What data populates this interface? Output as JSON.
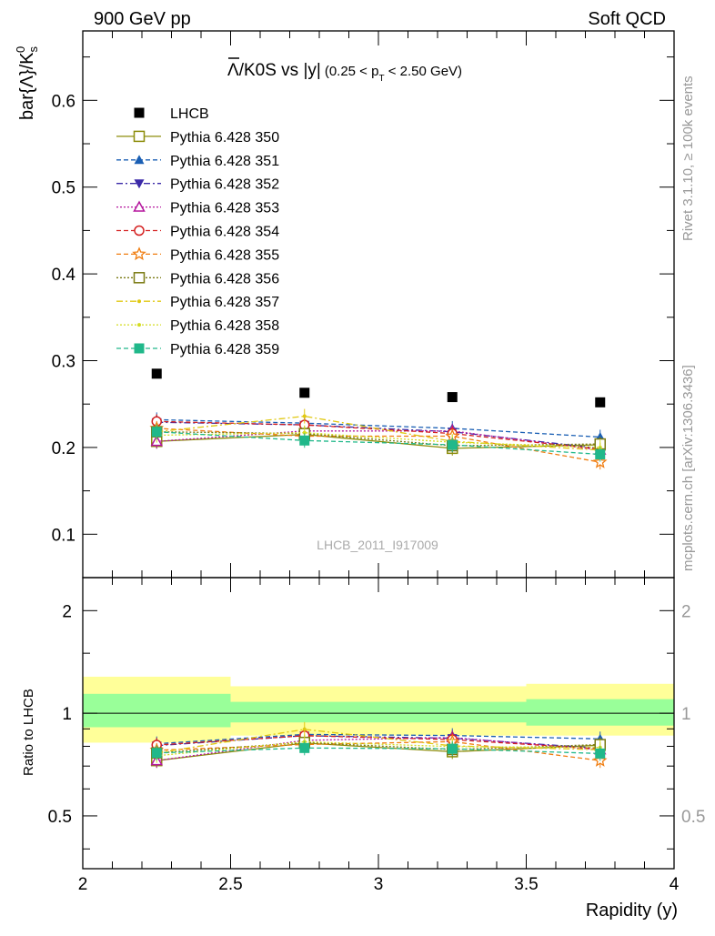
{
  "header": {
    "left": "900 GeV pp",
    "right": "Soft QCD"
  },
  "side": {
    "rivet": "Rivet 3.1.10, ≥ 100k events",
    "mcplots": "mcplots.cern.ch [arXiv:1306.3436]"
  },
  "chart_data": [
    {
      "type": "scatter",
      "title": "Λ̄/K0S vs |y|",
      "title_parts": {
        "lambda": "Λ",
        "main": "/K0S vs |y|",
        "cond_a": "(0.25 < p",
        "cond_sub": "T",
        "cond_b": " < 2.50 GeV)"
      },
      "ylabel": "bar{Λ}/K",
      "ylabel_sub": "s",
      "ylabel_sup": "0",
      "xlabel": "Rapidity (y)",
      "analysis_id": "LHCB_2011_I917009",
      "xlim": [
        2,
        4
      ],
      "ylim": [
        0.05,
        0.68
      ],
      "y_ticks": [
        "0.1",
        "0.2",
        "0.3",
        "0.4",
        "0.5",
        "0.6"
      ],
      "x": [
        2.25,
        2.75,
        3.25,
        3.75
      ],
      "data": {
        "name": "LHCB",
        "values": [
          0.285,
          0.263,
          0.258,
          0.252
        ],
        "color": "#000000"
      },
      "series": [
        {
          "name": "Pythia 6.428 350",
          "color": "#8c8c0a",
          "marker": "square-open",
          "dash": "solid",
          "values": [
            0.207,
            0.215,
            0.199,
            0.203
          ]
        },
        {
          "name": "Pythia 6.428 351",
          "color": "#1a5fb4",
          "marker": "triangle-up",
          "dash": "dash",
          "values": [
            0.232,
            0.228,
            0.222,
            0.212
          ]
        },
        {
          "name": "Pythia 6.428 352",
          "color": "#3b2aa8",
          "marker": "triangle-down",
          "dash": "dashdot",
          "values": [
            0.229,
            0.226,
            0.218,
            0.199
          ]
        },
        {
          "name": "Pythia 6.428 353",
          "color": "#b5179e",
          "marker": "triangle-open",
          "dash": "dot",
          "values": [
            0.207,
            0.219,
            0.219,
            0.197
          ]
        },
        {
          "name": "Pythia 6.428 354",
          "color": "#d42020",
          "marker": "circle-open",
          "dash": "dash",
          "values": [
            0.23,
            0.226,
            0.216,
            0.198
          ]
        },
        {
          "name": "Pythia 6.428 355",
          "color": "#f07d10",
          "marker": "star-open",
          "dash": "dash",
          "values": [
            0.222,
            0.213,
            0.213,
            0.183
          ]
        },
        {
          "name": "Pythia 6.428 356",
          "color": "#7a7a12",
          "marker": "square-open",
          "dash": "dot",
          "values": [
            0.218,
            0.216,
            0.202,
            0.204
          ]
        },
        {
          "name": "Pythia 6.428 357",
          "color": "#e0c810",
          "marker": "dot",
          "dash": "dashdot",
          "values": [
            0.218,
            0.236,
            0.207,
            0.197
          ]
        },
        {
          "name": "Pythia 6.428 358",
          "color": "#d4dc20",
          "marker": "dot",
          "dash": "dot",
          "values": [
            0.214,
            0.217,
            0.206,
            0.2
          ]
        },
        {
          "name": "Pythia 6.428 359",
          "color": "#20b88a",
          "marker": "square",
          "dash": "dash",
          "values": [
            0.218,
            0.208,
            0.203,
            0.192
          ]
        }
      ]
    },
    {
      "type": "scatter",
      "ylabel": "Ratio to LHCB",
      "xlabel": "Rapidity (y)",
      "xlim": [
        2,
        4
      ],
      "ylim": [
        0.35,
        2.5
      ],
      "y_scale": "log",
      "y_ticks": [
        "0.5",
        "1",
        "2"
      ],
      "x_ticks": [
        "2",
        "2.5",
        "3",
        "3.5",
        "4"
      ],
      "band_colors": {
        "inner": "#99ff99",
        "outer": "#ffff99"
      },
      "bands": [
        {
          "x": [
            2.0,
            2.5
          ],
          "inner": [
            0.91,
            1.14
          ],
          "outer": [
            0.82,
            1.28
          ]
        },
        {
          "x": [
            2.5,
            3.0
          ],
          "inner": [
            0.94,
            1.08
          ],
          "outer": [
            0.86,
            1.2
          ]
        },
        {
          "x": [
            3.0,
            3.5
          ],
          "inner": [
            0.94,
            1.08
          ],
          "outer": [
            0.86,
            1.2
          ]
        },
        {
          "x": [
            3.5,
            4.0
          ],
          "inner": [
            0.92,
            1.1
          ],
          "outer": [
            0.86,
            1.22
          ]
        }
      ]
    }
  ]
}
